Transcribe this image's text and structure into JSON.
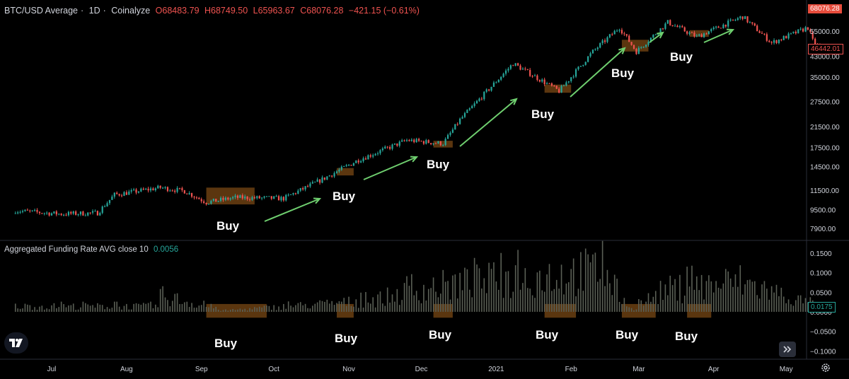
{
  "header": {
    "symbol": "BTC/USD Average",
    "interval": "1D",
    "source": "Coinalyze",
    "open": "O68483.79",
    "high": "H68749.50",
    "low": "L65963.67",
    "close": "C68076.28",
    "change": "−421.15 (−0.61%)"
  },
  "price_badges": {
    "last": "68076.28",
    "marker": "46442.01",
    "funding_last": "0.0175"
  },
  "indicator": {
    "name": "Aggregated Funding Rate AVG close 10",
    "value": "0.0056"
  },
  "buy_label": "Buy",
  "colors": {
    "up": "#26a69a",
    "down": "#ef5350",
    "funding_bar": "#5a5f55",
    "zone": "#6b3f12",
    "arrow": "#6fcf6f",
    "last_badge": "#e74c3c",
    "funding_badge": "#26a69a"
  },
  "chart_data": [
    {
      "type": "candlestick",
      "title": "BTC/USD Average · 1D · Coinalyze",
      "scale": "log",
      "y_ticks": [
        7900,
        9500,
        11500,
        14500,
        17500,
        21500,
        27500,
        35000,
        43000,
        55000
      ],
      "y_tick_labels": [
        "7900.00",
        "9500.00",
        "11500.00",
        "14500.00",
        "17500.00",
        "21500.00",
        "27500.00",
        "35000.00",
        "43000.00",
        "55000.00"
      ],
      "x_tick_labels": [
        "Jul",
        "Aug",
        "Sep",
        "Oct",
        "Nov",
        "Dec",
        "2021",
        "Feb",
        "Mar",
        "Apr",
        "May"
      ],
      "price_path": [
        {
          "date": "2020-06-16",
          "close": 9400
        },
        {
          "date": "2020-07-05",
          "close": 9100
        },
        {
          "date": "2020-07-20",
          "close": 9200
        },
        {
          "date": "2020-07-27",
          "close": 11000
        },
        {
          "date": "2020-08-15",
          "close": 11800
        },
        {
          "date": "2020-08-25",
          "close": 11400
        },
        {
          "date": "2020-09-03",
          "close": 10200
        },
        {
          "date": "2020-09-15",
          "close": 10700
        },
        {
          "date": "2020-10-05",
          "close": 10600
        },
        {
          "date": "2020-10-21",
          "close": 12800
        },
        {
          "date": "2020-11-05",
          "close": 15500
        },
        {
          "date": "2020-11-25",
          "close": 18800
        },
        {
          "date": "2020-12-10",
          "close": 18200
        },
        {
          "date": "2020-12-17",
          "close": 23000
        },
        {
          "date": "2021-01-08",
          "close": 40000
        },
        {
          "date": "2021-01-27",
          "close": 30500
        },
        {
          "date": "2021-02-10",
          "close": 45000
        },
        {
          "date": "2021-02-21",
          "close": 57000
        },
        {
          "date": "2021-02-28",
          "close": 45000
        },
        {
          "date": "2021-03-13",
          "close": 60000
        },
        {
          "date": "2021-03-25",
          "close": 52000
        },
        {
          "date": "2021-04-13",
          "close": 63500
        },
        {
          "date": "2021-04-25",
          "close": 49000
        },
        {
          "date": "2021-05-10",
          "close": 57000
        },
        {
          "date": "2021-05-12",
          "close": 50000
        },
        {
          "date": "2021-05-15",
          "close": 46442
        }
      ],
      "buy_zones": [
        {
          "start": "2020-09-03",
          "end": "2020-09-23",
          "low": 10000,
          "high": 11800
        },
        {
          "start": "2020-10-27",
          "end": "2020-11-03",
          "low": 13300,
          "high": 14300
        },
        {
          "start": "2020-12-06",
          "end": "2020-12-14",
          "low": 17500,
          "high": 18700
        },
        {
          "start": "2021-01-21",
          "end": "2021-02-01",
          "low": 30000,
          "high": 32500
        },
        {
          "start": "2021-02-22",
          "end": "2021-03-05",
          "low": 45000,
          "high": 50500
        },
        {
          "start": "2021-03-22",
          "end": "2021-03-30",
          "low": 52000,
          "high": 55500
        }
      ],
      "annotations": [
        "Buy",
        "Buy",
        "Buy",
        "Buy",
        "Buy",
        "Buy"
      ]
    },
    {
      "type": "bar",
      "title": "Aggregated Funding Rate AVG close 10",
      "y_ticks": [
        0.15,
        0.1,
        0.05,
        0,
        -0.05,
        -0.1
      ],
      "y_tick_labels": [
        "0.1500",
        "0.1000",
        "0.0500",
        "0.0000",
        "−0.0500",
        "−0.1000"
      ],
      "peaks": [
        {
          "date": "2020-08-15",
          "value": 0.06
        },
        {
          "date": "2020-09-10",
          "value": 0.005
        },
        {
          "date": "2020-11-10",
          "value": 0.04
        },
        {
          "date": "2020-12-05",
          "value": 0.09
        },
        {
          "date": "2021-01-08",
          "value": 0.12
        },
        {
          "date": "2021-02-13",
          "value": 0.15
        },
        {
          "date": "2021-02-26",
          "value": 0.01
        },
        {
          "date": "2021-03-12",
          "value": 0.08
        },
        {
          "date": "2021-04-12",
          "value": 0.11
        },
        {
          "date": "2021-05-15",
          "value": 0.0175
        }
      ],
      "last_value": 0.0175,
      "buy_zones": [
        {
          "start": "2020-09-03",
          "end": "2020-09-28"
        },
        {
          "start": "2020-10-27",
          "end": "2020-11-03"
        },
        {
          "start": "2020-12-06",
          "end": "2020-12-14"
        },
        {
          "start": "2021-01-21",
          "end": "2021-02-03"
        },
        {
          "start": "2021-02-22",
          "end": "2021-03-08"
        },
        {
          "start": "2021-03-21",
          "end": "2021-03-31"
        }
      ],
      "annotations": [
        "Buy",
        "Buy",
        "Buy",
        "Buy",
        "Buy",
        "Buy"
      ]
    }
  ]
}
